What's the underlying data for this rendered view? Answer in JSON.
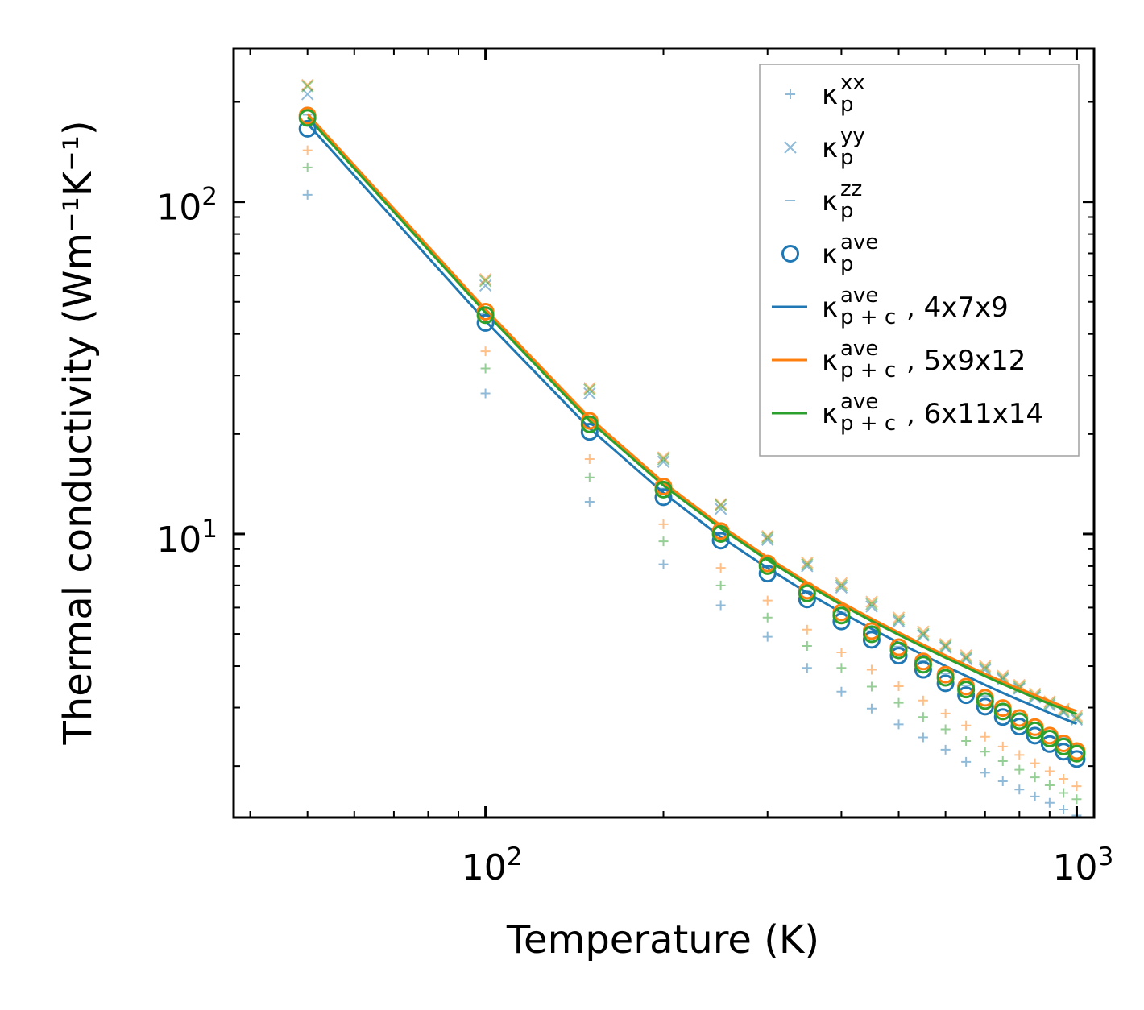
{
  "chart_data": {
    "type": "scatter",
    "title": "",
    "xlabel": "Temperature (K)",
    "ylabel": "Thermal conductivity (Wm⁻¹K⁻¹)",
    "xscale": "log",
    "yscale": "log",
    "xlim": [
      37.5,
      1070
    ],
    "ylim": [
      1.4,
      290
    ],
    "legend_position": "top-right",
    "x_tick_labels": [
      {
        "value": 100,
        "base": "10",
        "exp": "2"
      },
      {
        "value": 1000,
        "base": "10",
        "exp": "3"
      }
    ],
    "y_tick_labels": [
      {
        "value": 10,
        "base": "10",
        "exp": "1"
      },
      {
        "value": 100,
        "base": "10",
        "exp": "2"
      }
    ],
    "temperatures": [
      50,
      100,
      150,
      200,
      250,
      300,
      350,
      400,
      450,
      500,
      550,
      600,
      650,
      700,
      750,
      800,
      850,
      900,
      950,
      1000
    ],
    "colors": {
      "blue": "#1f77b4",
      "orange": "#ff7f0e",
      "green": "#2ca02c",
      "grey": "#7f7f7f"
    },
    "series": [
      {
        "name": "kappa_p^xx 4x7x9",
        "color": "blue",
        "marker": "plus",
        "in_legend": false,
        "values": [
          105,
          26.5,
          12.5,
          8.1,
          6.1,
          4.9,
          3.95,
          3.35,
          2.98,
          2.67,
          2.44,
          2.24,
          2.06,
          1.91,
          1.8,
          1.7,
          1.62,
          1.55,
          1.48,
          1.42
        ]
      },
      {
        "name": "kappa_p^xx 5x9x12",
        "color": "orange",
        "marker": "plus",
        "in_legend": false,
        "values": [
          143,
          35.5,
          16.8,
          10.7,
          7.9,
          6.3,
          5.15,
          4.4,
          3.9,
          3.48,
          3.15,
          2.88,
          2.65,
          2.45,
          2.29,
          2.16,
          2.04,
          1.93,
          1.83,
          1.74
        ]
      },
      {
        "name": "kappa_p^xx 6x11x14",
        "color": "green",
        "marker": "plus",
        "in_legend": false,
        "values": [
          127,
          31.5,
          14.8,
          9.5,
          7.0,
          5.6,
          4.6,
          3.95,
          3.47,
          3.1,
          2.81,
          2.58,
          2.38,
          2.21,
          2.07,
          1.95,
          1.85,
          1.75,
          1.66,
          1.59
        ]
      },
      {
        "name": "kappa_p^yy 4x7x9",
        "color": "blue",
        "marker": "cross",
        "in_legend": false,
        "values": [
          211,
          56,
          26.5,
          16.5,
          11.9,
          9.6,
          8.0,
          6.9,
          6.05,
          5.45,
          4.95,
          4.55,
          4.2,
          3.9,
          3.65,
          3.42,
          3.22,
          3.05,
          2.9,
          2.76
        ]
      },
      {
        "name": "kappa_p^yy 5x9x12",
        "color": "orange",
        "marker": "cross",
        "in_legend": false,
        "values": [
          225,
          58.5,
          27.5,
          17.0,
          12.3,
          9.85,
          8.2,
          7.1,
          6.25,
          5.6,
          5.08,
          4.66,
          4.31,
          4.0,
          3.74,
          3.51,
          3.3,
          3.13,
          2.97,
          2.83
        ]
      },
      {
        "name": "kappa_p^yy 6x11x14",
        "color": "green",
        "marker": "cross",
        "in_legend": false,
        "values": [
          223,
          57.8,
          27.2,
          16.8,
          12.2,
          9.75,
          8.1,
          7.0,
          6.15,
          5.52,
          5.0,
          4.6,
          4.25,
          3.95,
          3.69,
          3.46,
          3.26,
          3.09,
          2.93,
          2.79
        ]
      },
      {
        "name": "kappa_p^zz 4x7x9",
        "color": "blue",
        "marker": "dash",
        "in_legend": false,
        "values": [
          183,
          46,
          21.5,
          13.7,
          10.0,
          8.0,
          6.7,
          5.8,
          5.1,
          4.58,
          4.15,
          3.8,
          3.5,
          3.25,
          3.04,
          2.86,
          2.7,
          2.55,
          2.43,
          2.31
        ]
      },
      {
        "name": "kappa_p^ave 4x7x9",
        "color": "blue",
        "marker": "circle",
        "in_legend": false,
        "values": [
          166,
          43.2,
          20.3,
          12.9,
          9.55,
          7.6,
          6.35,
          5.45,
          4.8,
          4.3,
          3.9,
          3.55,
          3.27,
          3.02,
          2.81,
          2.63,
          2.47,
          2.33,
          2.21,
          2.1
        ]
      },
      {
        "name": "kappa_p^ave 5x9x12",
        "color": "orange",
        "marker": "circle",
        "in_legend": false,
        "values": [
          182,
          46.7,
          21.9,
          13.9,
          10.2,
          8.15,
          6.75,
          5.8,
          5.1,
          4.56,
          4.13,
          3.77,
          3.47,
          3.21,
          2.99,
          2.79,
          2.62,
          2.47,
          2.34,
          2.22
        ]
      },
      {
        "name": "kappa_p^ave 6x11x14",
        "color": "green",
        "marker": "circle",
        "in_legend": false,
        "values": [
          179,
          45.6,
          21.4,
          13.6,
          10.0,
          8.0,
          6.62,
          5.68,
          4.99,
          4.46,
          4.04,
          3.69,
          3.4,
          3.14,
          2.92,
          2.73,
          2.56,
          2.42,
          2.29,
          2.18
        ]
      },
      {
        "name": "kappa_p+c^ave 4x7x9",
        "color": "blue",
        "marker": "line",
        "in_legend": true,
        "values": [
          172,
          43.8,
          20.8,
          13.3,
          9.8,
          7.9,
          6.65,
          5.8,
          5.18,
          4.7,
          4.32,
          4.0,
          3.74,
          3.51,
          3.32,
          3.16,
          3.02,
          2.89,
          2.78,
          2.68
        ]
      },
      {
        "name": "kappa_p+c^ave 5x9x12",
        "color": "orange",
        "marker": "line",
        "in_legend": true,
        "values": [
          184,
          47.5,
          22.4,
          14.3,
          10.6,
          8.5,
          7.15,
          6.22,
          5.56,
          5.05,
          4.64,
          4.31,
          4.03,
          3.79,
          3.59,
          3.42,
          3.27,
          3.14,
          3.02,
          2.93
        ]
      },
      {
        "name": "kappa_p+c^ave 6x11x14",
        "color": "green",
        "marker": "line",
        "in_legend": true,
        "values": [
          180,
          46.4,
          21.9,
          14.0,
          10.4,
          8.35,
          7.03,
          6.12,
          5.47,
          4.97,
          4.57,
          4.24,
          3.97,
          3.73,
          3.53,
          3.36,
          3.21,
          3.08,
          2.97,
          2.87
        ]
      }
    ],
    "legend": [
      {
        "symbol": "plus",
        "color": "blue",
        "faded": true,
        "base": "κ",
        "sup": "xx",
        "sub": "p",
        "suffix": ""
      },
      {
        "symbol": "cross",
        "color": "blue",
        "faded": true,
        "base": "κ",
        "sup": "yy",
        "sub": "p",
        "suffix": ""
      },
      {
        "symbol": "dash",
        "color": "blue",
        "faded": true,
        "base": "κ",
        "sup": "zz",
        "sub": "p",
        "suffix": ""
      },
      {
        "symbol": "circle",
        "color": "blue",
        "faded": false,
        "base": "κ",
        "sup": "ave",
        "sub": "p",
        "suffix": ""
      },
      {
        "symbol": "line",
        "color": "blue",
        "faded": false,
        "base": "κ",
        "sup": "ave",
        "sub": "p + c",
        "suffix": ", 4x7x9"
      },
      {
        "symbol": "line",
        "color": "orange",
        "faded": false,
        "base": "κ",
        "sup": "ave",
        "sub": "p + c",
        "suffix": ", 5x9x12"
      },
      {
        "symbol": "line",
        "color": "green",
        "faded": false,
        "base": "κ",
        "sup": "ave",
        "sub": "p + c",
        "suffix": ", 6x11x14"
      }
    ]
  }
}
